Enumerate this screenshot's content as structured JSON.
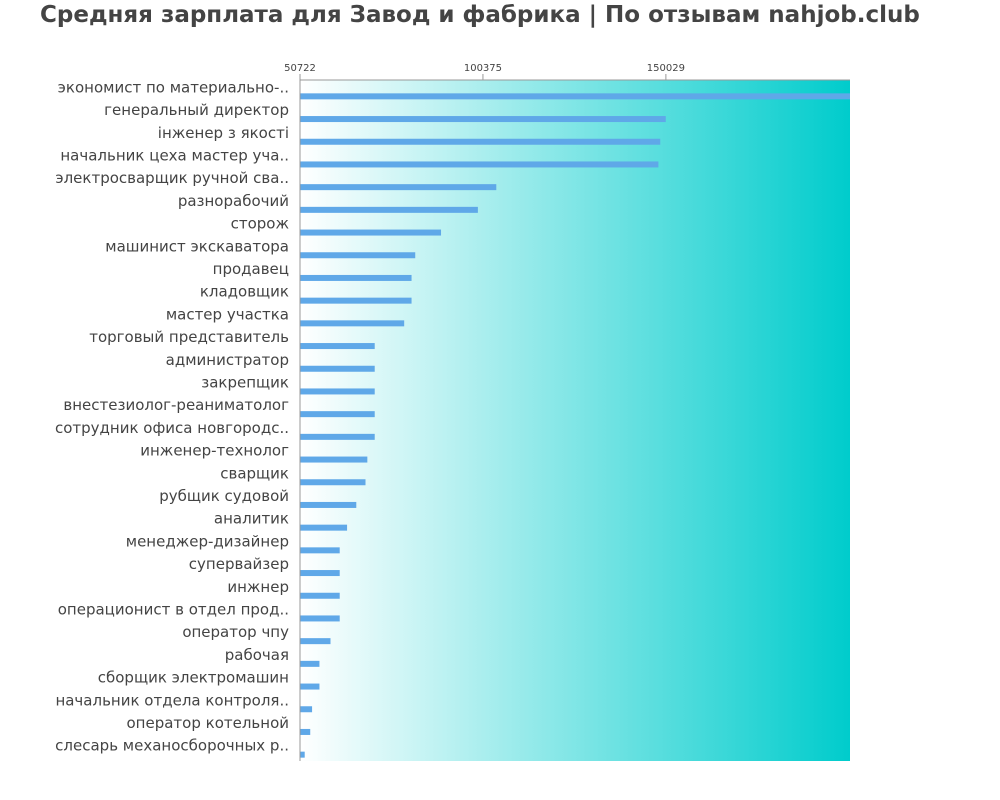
{
  "chart_data": {
    "type": "bar",
    "orientation": "horizontal",
    "title": "Средняя зарплата для Завод и фабрика | По отзывам nahjob.club",
    "xlabel": "",
    "ylabel": "",
    "xticks": [
      50722,
      100375,
      150029
    ],
    "xlim": [
      50722,
      200000
    ],
    "grid": false,
    "legend": "none",
    "colors": {
      "bar": "#5fa8e8",
      "background_start": "#ffffff",
      "background_end": "#00cccc",
      "text": "#444444",
      "axis": "#999999"
    },
    "categories": [
      "экономист по материально-..",
      "генеральный директор",
      "інженер з якості",
      "начальник цеха мастер уча..",
      "электросварщик ручной сва..",
      "разнорабочий",
      "сторож",
      "машинист экскаватора",
      "продавец",
      "кладовщик",
      "мастер участка",
      "торговый представитель",
      "администратор",
      "закрепщик",
      "внестезиолог-реаниматолог",
      "сотрудник офиса новгородс..",
      "инженер-технолог",
      "сварщик",
      "рубщик судовой",
      "аналитик",
      "менеджер-дизайнер",
      "супервайзер",
      "инжнер",
      "операционист в отдел прод..",
      "оператор чпу",
      "рабочая",
      "сборщик электромашин",
      "начальник отдела контроля..",
      "оператор котельной",
      "слесарь механосборочных р.."
    ],
    "values": [
      200000,
      150000,
      148500,
      148000,
      104000,
      99000,
      89000,
      82000,
      81000,
      81000,
      79000,
      71000,
      71000,
      71000,
      71000,
      71000,
      69000,
      68500,
      66000,
      63500,
      61500,
      61500,
      61500,
      61500,
      59000,
      56000,
      56000,
      54000,
      53500,
      52000
    ]
  }
}
